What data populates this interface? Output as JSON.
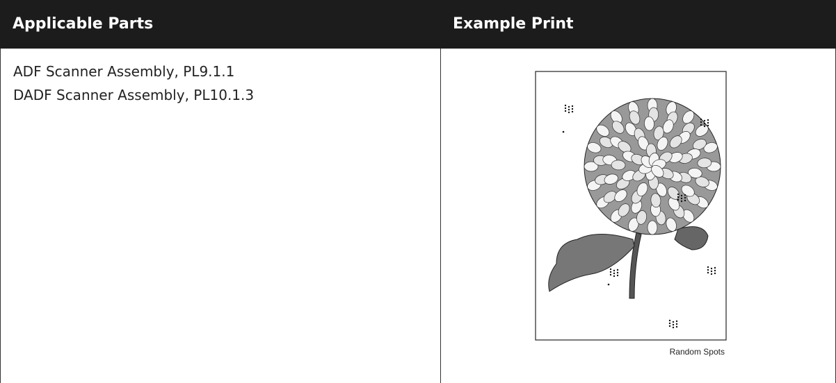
{
  "table": {
    "header": [
      "Applicable Parts",
      "Example Print"
    ],
    "applicable_parts": [
      "ADF Scanner Assembly, PL9.1.1",
      "DADF Scanner Assembly, PL10.1.3"
    ],
    "example_caption": "Random Spots"
  }
}
